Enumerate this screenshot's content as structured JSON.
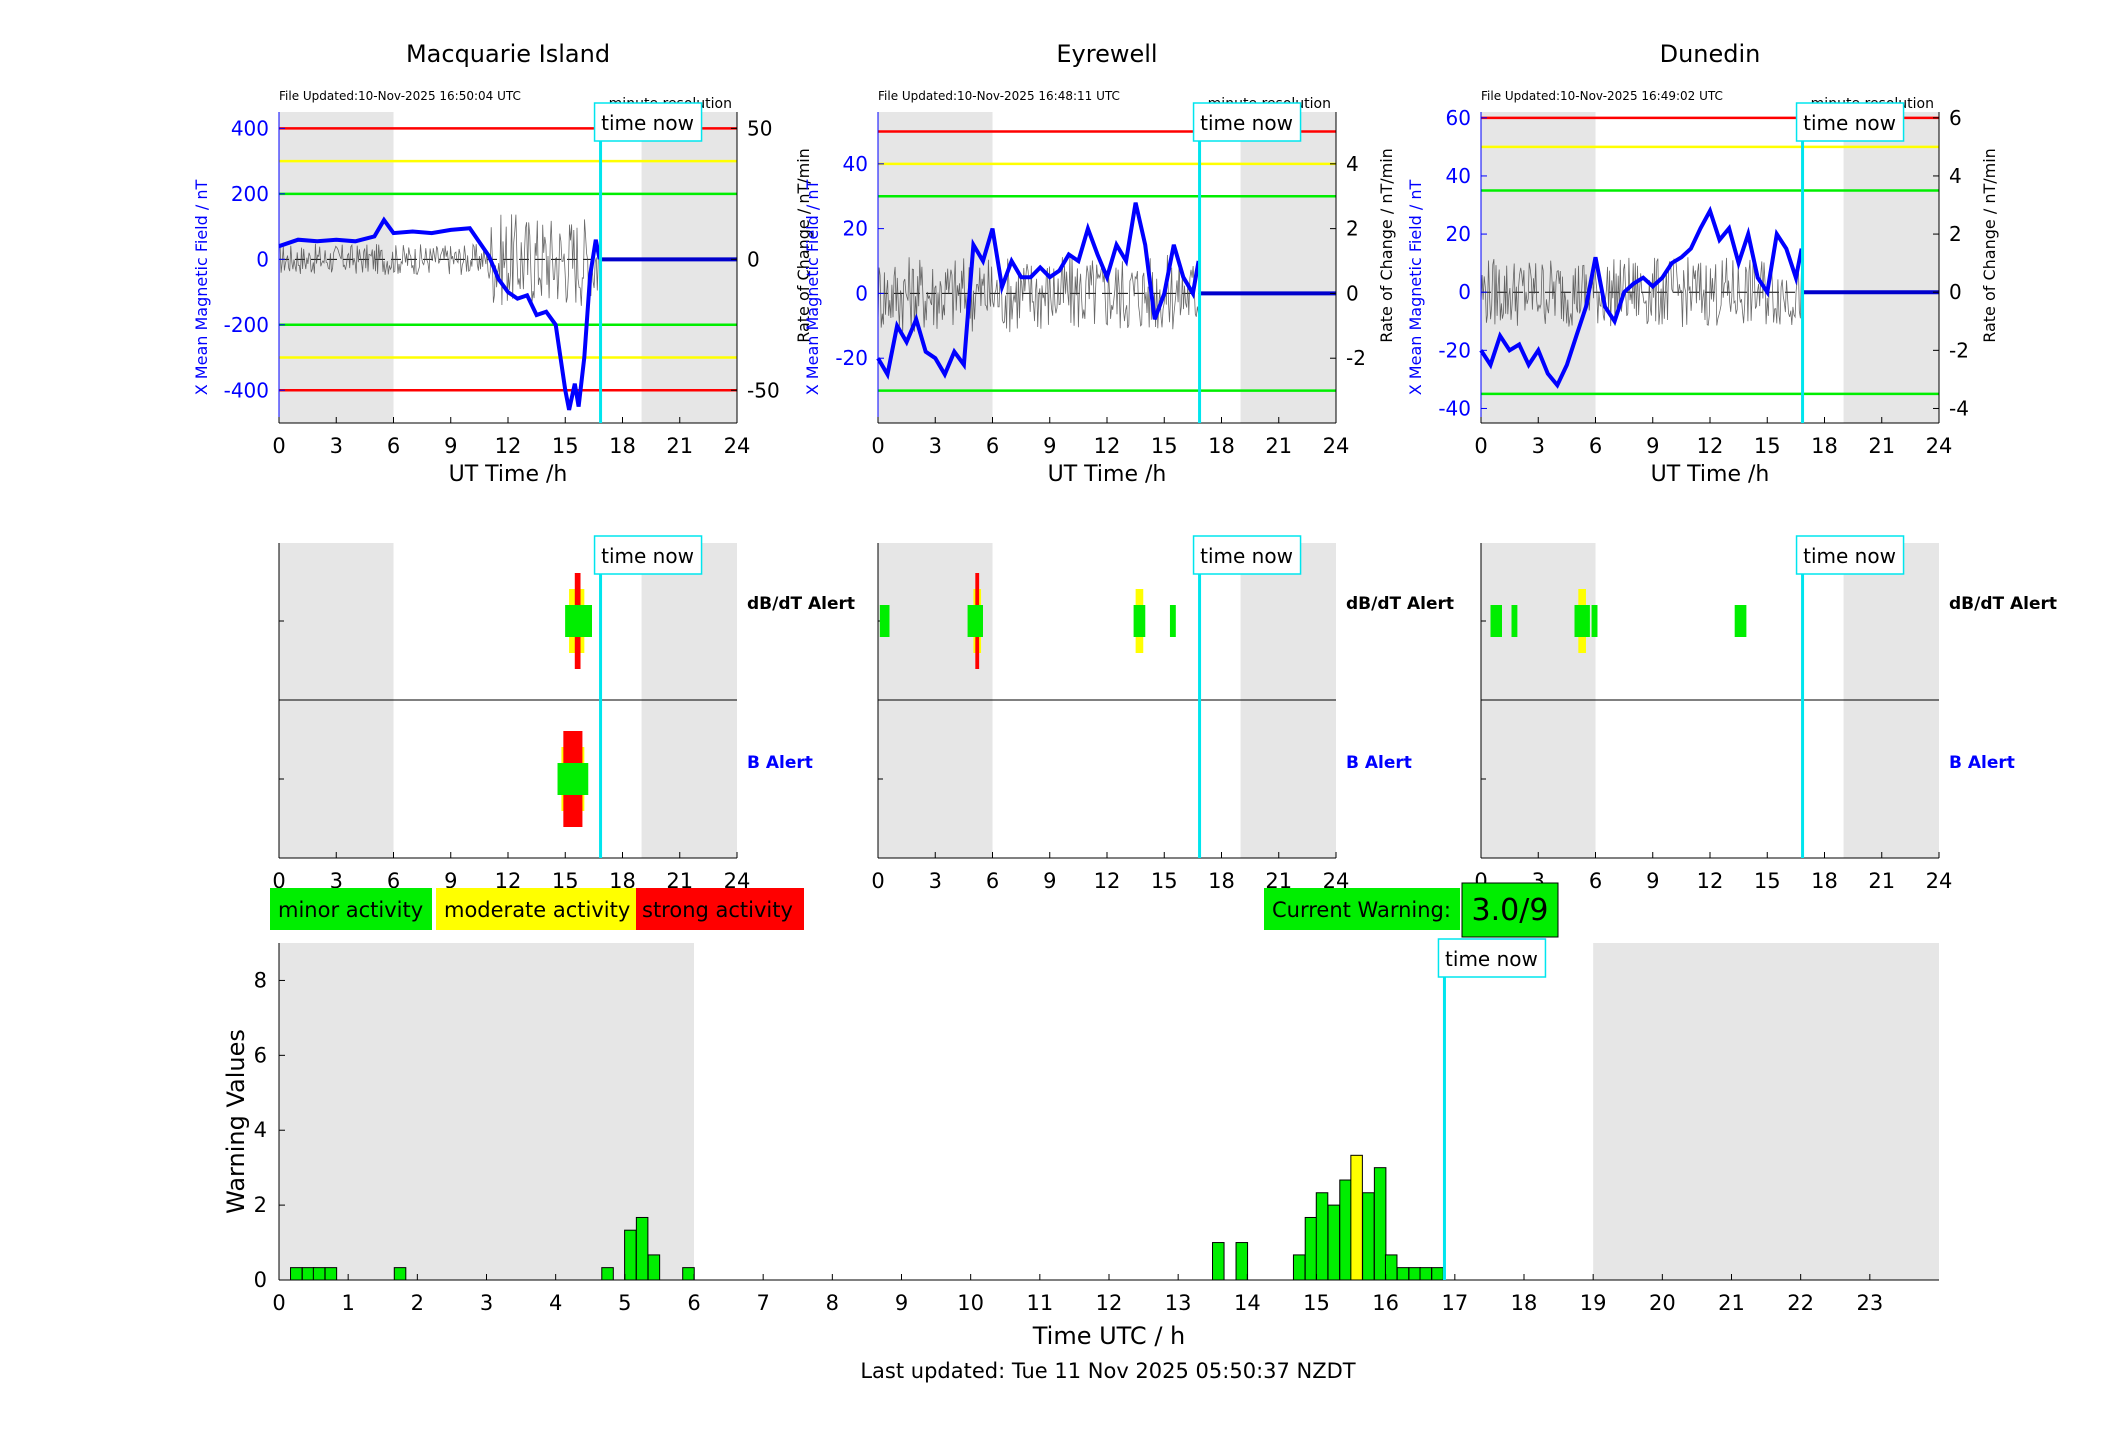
{
  "stations": [
    {
      "name": "Macquarie Island",
      "file_updated": "File Updated:10-Nov-2025 16:50:04 UTC",
      "resolution": "minute resolution",
      "left_axis": {
        "label": "X Mean Magnetic Field / nT",
        "ylim": [
          -500,
          450
        ],
        "ticks": [
          -400,
          -200,
          0,
          200,
          400
        ]
      },
      "right_axis": {
        "label": "Rate of Change / nT/min",
        "ylim": [
          -62.5,
          56.25
        ],
        "ticks": [
          -50,
          0,
          50
        ]
      },
      "thresholds": {
        "red": [
          400,
          -400
        ],
        "yellow": [
          300,
          -300
        ],
        "green": [
          200,
          -200
        ]
      },
      "x_mean_field": {
        "t": [
          0,
          1,
          2,
          3,
          4,
          5,
          5.5,
          6,
          7,
          8,
          9,
          10,
          11,
          11.5,
          12,
          12.5,
          13,
          13.5,
          14,
          14.5,
          15,
          15.2,
          15.5,
          15.7,
          16,
          16.3,
          16.6,
          16.8
        ],
        "v": [
          40,
          60,
          55,
          60,
          55,
          70,
          120,
          80,
          85,
          80,
          90,
          95,
          10,
          -60,
          -100,
          -120,
          -110,
          -170,
          -160,
          -200,
          -400,
          -460,
          -380,
          -450,
          -300,
          -50,
          60,
          0
        ]
      },
      "now_hour": 16.85,
      "dbdt_alerts": [
        {
          "t": [
            15,
            16.4
          ],
          "level": "green"
        },
        {
          "t": [
            15.2,
            16.0
          ],
          "level": "yellow"
        },
        {
          "t": [
            15.5,
            15.8
          ],
          "level": "red"
        }
      ],
      "b_alerts": [
        {
          "t": [
            14.6,
            16.2
          ],
          "level": "green"
        },
        {
          "t": [
            14.8,
            16.0
          ],
          "level": "yellow"
        },
        {
          "t": [
            14.9,
            15.9
          ],
          "level": "red"
        }
      ]
    },
    {
      "name": "Eyrewell",
      "file_updated": "File Updated:10-Nov-2025 16:48:11 UTC",
      "resolution": "minute resolution",
      "left_axis": {
        "label": "X Mean Magnetic Field / nT",
        "ylim": [
          -40,
          56
        ],
        "ticks": [
          -20,
          0,
          20,
          40
        ]
      },
      "right_axis": {
        "label": "Rate of Change / nT/min",
        "ylim": [
          -4,
          5.6
        ],
        "ticks": [
          -2,
          0,
          2,
          4
        ]
      },
      "thresholds": {
        "red": [
          50
        ],
        "yellow": [
          40
        ],
        "green": [
          30,
          -30
        ]
      },
      "x_mean_field": {
        "t": [
          0,
          0.5,
          1,
          1.5,
          2,
          2.5,
          3,
          3.5,
          4,
          4.5,
          5,
          5.5,
          6,
          6.5,
          7,
          7.5,
          8,
          8.5,
          9,
          9.5,
          10,
          10.5,
          11,
          11.5,
          12,
          12.5,
          13,
          13.5,
          14,
          14.5,
          15,
          15.5,
          16,
          16.5,
          16.8
        ],
        "v": [
          -20,
          -25,
          -10,
          -15,
          -8,
          -18,
          -20,
          -25,
          -18,
          -22,
          15,
          10,
          20,
          2,
          10,
          5,
          5,
          8,
          5,
          7,
          12,
          10,
          20,
          12,
          5,
          15,
          10,
          28,
          15,
          -8,
          0,
          15,
          5,
          0,
          10
        ]
      },
      "now_hour": 16.85,
      "dbdt_alerts": [
        {
          "t": [
            0.1,
            0.6
          ],
          "level": "green"
        },
        {
          "t": [
            4.7,
            5.5
          ],
          "level": "green"
        },
        {
          "t": [
            5.0,
            5.4
          ],
          "level": "yellow"
        },
        {
          "t": [
            5.1,
            5.3
          ],
          "level": "red"
        },
        {
          "t": [
            13.4,
            14.0
          ],
          "level": "green"
        },
        {
          "t": [
            13.5,
            13.9
          ],
          "level": "yellow"
        },
        {
          "t": [
            15.3,
            15.6
          ],
          "level": "green"
        }
      ],
      "b_alerts": []
    },
    {
      "name": "Dunedin",
      "file_updated": "File Updated:10-Nov-2025 16:49:02 UTC",
      "resolution": "minute resolution",
      "left_axis": {
        "label": "X Mean Magnetic Field / nT",
        "ylim": [
          -45,
          62
        ],
        "ticks": [
          -40,
          -20,
          0,
          20,
          40,
          60
        ]
      },
      "right_axis": {
        "label": "Rate of Change / nT/min",
        "ylim": [
          -4.5,
          6.2
        ],
        "ticks": [
          -4,
          -2,
          0,
          2,
          4,
          6
        ]
      },
      "thresholds": {
        "red": [
          60
        ],
        "yellow": [
          50
        ],
        "green": [
          35,
          -35
        ]
      },
      "x_mean_field": {
        "t": [
          0,
          0.5,
          1,
          1.5,
          2,
          2.5,
          3,
          3.5,
          4,
          4.5,
          5,
          5.5,
          6,
          6.5,
          7,
          7.5,
          8,
          8.5,
          9,
          9.5,
          10,
          10.5,
          11,
          11.5,
          12,
          12.5,
          13,
          13.5,
          14,
          14.5,
          15,
          15.5,
          16,
          16.5,
          16.8
        ],
        "v": [
          -20,
          -25,
          -15,
          -20,
          -18,
          -25,
          -20,
          -28,
          -32,
          -25,
          -15,
          -5,
          12,
          -5,
          -10,
          0,
          3,
          5,
          2,
          5,
          10,
          12,
          15,
          22,
          28,
          18,
          22,
          10,
          20,
          5,
          0,
          20,
          15,
          5,
          15
        ]
      },
      "now_hour": 16.85,
      "dbdt_alerts": [
        {
          "t": [
            0.5,
            1.1
          ],
          "level": "green"
        },
        {
          "t": [
            1.6,
            1.9
          ],
          "level": "green"
        },
        {
          "t": [
            4.9,
            5.7
          ],
          "level": "green"
        },
        {
          "t": [
            5.1,
            5.5
          ],
          "level": "yellow"
        },
        {
          "t": [
            5.8,
            6.1
          ],
          "level": "green"
        },
        {
          "t": [
            13.3,
            13.9
          ],
          "level": "green"
        }
      ],
      "b_alerts": []
    }
  ],
  "common": {
    "xlabel": "UT Time /h",
    "x_ticks": [
      "0",
      "3",
      "6",
      "9",
      "12",
      "15",
      "18",
      "21",
      "24"
    ],
    "time_now_label": "time now",
    "night_bands": [
      [
        0,
        6
      ],
      [
        19,
        24
      ]
    ],
    "dbdt_label": "dB/dT Alert",
    "b_label": "B Alert"
  },
  "legend": {
    "minor": "minor activity",
    "moderate": "moderate activity",
    "strong": "strong activity"
  },
  "current_warning": {
    "label": "Current Warning:",
    "value": "3.0/9"
  },
  "colors": {
    "green": "#00ee00",
    "yellow": "#ffff00",
    "red": "#ff0000",
    "cyan": "#00e5ee",
    "blue": "#0000ff",
    "grey": "#e6e6e6"
  },
  "chart_data": {
    "type": "bar",
    "ylabel": "Warning Values",
    "xlabel": "Time UTC / h",
    "xlim": [
      0,
      24
    ],
    "ylim": [
      0,
      9
    ],
    "y_ticks": [
      0,
      2,
      4,
      6,
      8
    ],
    "x_ticks": [
      "0",
      "1",
      "2",
      "3",
      "4",
      "5",
      "6",
      "7",
      "8",
      "9",
      "10",
      "11",
      "12",
      "13",
      "14",
      "15",
      "16",
      "17",
      "18",
      "19",
      "20",
      "21",
      "22",
      "23"
    ],
    "now_hour": 16.85,
    "time_now_label": "time now",
    "night_bands": [
      [
        0,
        6
      ],
      [
        19,
        24
      ]
    ],
    "bars": [
      {
        "t": 0.25,
        "v": 0.33,
        "level": "green"
      },
      {
        "t": 0.42,
        "v": 0.33,
        "level": "green"
      },
      {
        "t": 0.58,
        "v": 0.33,
        "level": "green"
      },
      {
        "t": 0.75,
        "v": 0.33,
        "level": "green"
      },
      {
        "t": 1.75,
        "v": 0.33,
        "level": "green"
      },
      {
        "t": 4.75,
        "v": 0.33,
        "level": "green"
      },
      {
        "t": 5.08,
        "v": 1.33,
        "level": "green"
      },
      {
        "t": 5.25,
        "v": 1.67,
        "level": "green"
      },
      {
        "t": 5.42,
        "v": 0.67,
        "level": "green"
      },
      {
        "t": 5.92,
        "v": 0.33,
        "level": "green"
      },
      {
        "t": 13.58,
        "v": 1.0,
        "level": "green"
      },
      {
        "t": 13.92,
        "v": 1.0,
        "level": "green"
      },
      {
        "t": 14.75,
        "v": 0.67,
        "level": "green"
      },
      {
        "t": 14.92,
        "v": 1.67,
        "level": "green"
      },
      {
        "t": 15.08,
        "v": 2.33,
        "level": "green"
      },
      {
        "t": 15.25,
        "v": 2.0,
        "level": "green"
      },
      {
        "t": 15.42,
        "v": 2.67,
        "level": "green"
      },
      {
        "t": 15.58,
        "v": 3.33,
        "level": "yellow"
      },
      {
        "t": 15.75,
        "v": 2.33,
        "level": "green"
      },
      {
        "t": 15.92,
        "v": 3.0,
        "level": "green"
      },
      {
        "t": 16.08,
        "v": 0.67,
        "level": "green"
      },
      {
        "t": 16.25,
        "v": 0.33,
        "level": "green"
      },
      {
        "t": 16.42,
        "v": 0.33,
        "level": "green"
      },
      {
        "t": 16.58,
        "v": 0.33,
        "level": "green"
      },
      {
        "t": 16.75,
        "v": 0.33,
        "level": "green"
      }
    ]
  },
  "footer": {
    "last_updated": "Last updated: Tue 11 Nov 2025 05:50:37 NZDT"
  }
}
